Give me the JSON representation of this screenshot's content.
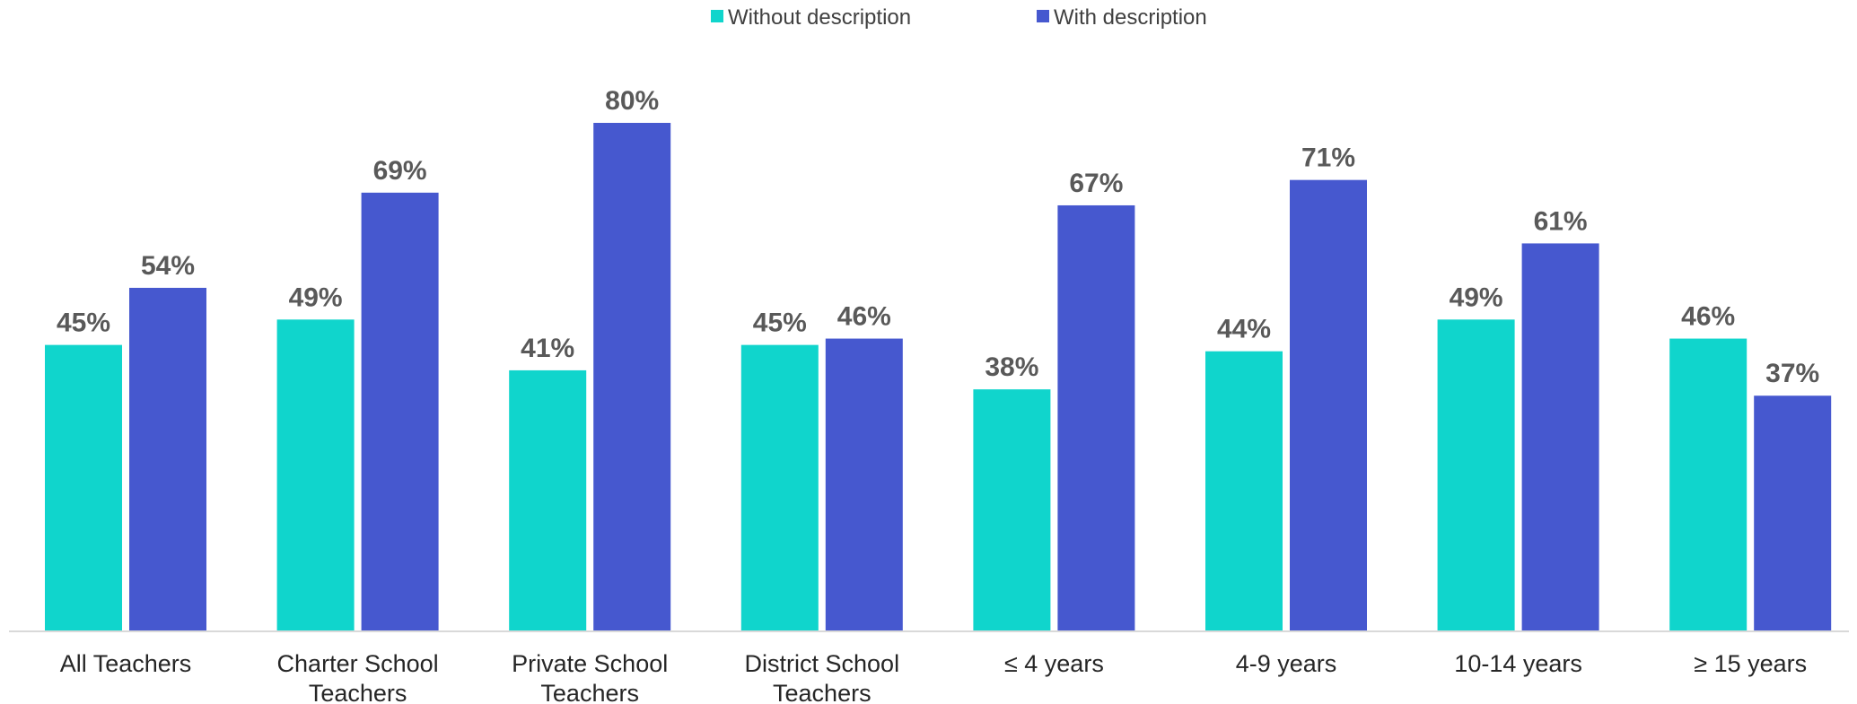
{
  "chart_data": {
    "type": "bar",
    "categories": [
      [
        "All Teachers"
      ],
      [
        "Charter School",
        "Teachers"
      ],
      [
        "Private School",
        "Teachers"
      ],
      [
        "District School",
        "Teachers"
      ],
      [
        "≤ 4 years"
      ],
      [
        "4-9 years"
      ],
      [
        "10-14 years"
      ],
      [
        "≥ 15 years"
      ]
    ],
    "series": [
      {
        "name": "Without description",
        "color": "#10d5cc",
        "values": [
          45,
          49,
          41,
          45,
          38,
          44,
          49,
          46
        ],
        "labels": [
          "45%",
          "49%",
          "41%",
          "45%",
          "38%",
          "44%",
          "49%",
          "46%"
        ]
      },
      {
        "name": "With description",
        "color": "#4658cf",
        "values": [
          54,
          69,
          80,
          46,
          67,
          71,
          61,
          37
        ],
        "labels": [
          "54%",
          "69%",
          "80%",
          "46%",
          "67%",
          "71%",
          "61%",
          "37%"
        ]
      }
    ],
    "ylim": [
      0,
      80
    ],
    "legend_position": "top-center",
    "grid": false,
    "axis_color": "#d9d9d9"
  }
}
